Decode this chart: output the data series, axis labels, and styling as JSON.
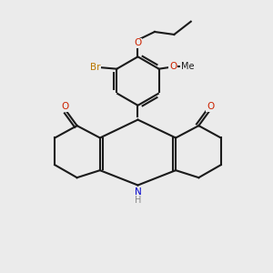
{
  "background_color": "#ebebeb",
  "bond_color": "#1a1a1a",
  "bond_width": 1.5,
  "atom_colors": {
    "O": "#cc2200",
    "N": "#0000cc",
    "Br": "#bb7700",
    "H": "#888888",
    "C": "#1a1a1a"
  },
  "figsize": [
    3.0,
    3.0
  ],
  "dpi": 100
}
